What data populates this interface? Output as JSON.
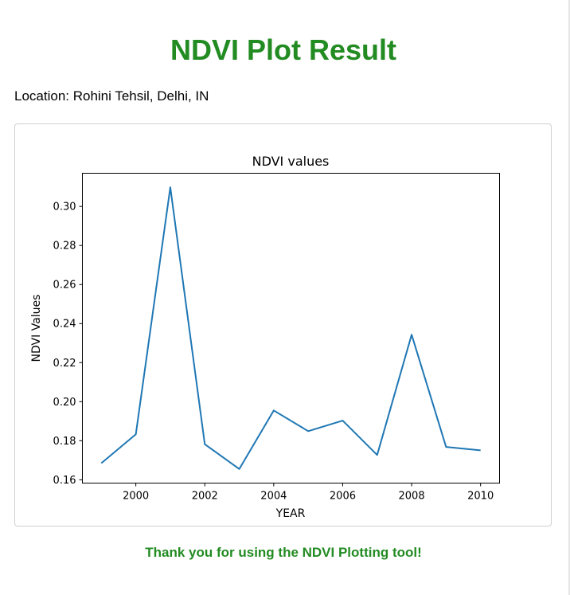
{
  "page": {
    "title": "NDVI Plot Result",
    "location_label": "Location: Rohini Tehsil, Delhi, IN",
    "footer": "Thank you for using the NDVI Plotting tool!",
    "accent_color": "#228b22"
  },
  "chart_data": {
    "type": "line",
    "title": "NDVI values",
    "xlabel": "YEAR",
    "ylabel": "NDVI Values",
    "x": [
      1999,
      2000,
      2001,
      2002,
      2003,
      2004,
      2005,
      2006,
      2007,
      2008,
      2009,
      2010
    ],
    "series": [
      {
        "values": [
          0.1685,
          0.1833,
          0.3098,
          0.1782,
          0.1655,
          0.1955,
          0.1849,
          0.1903,
          0.1727,
          0.2343,
          0.1768,
          0.1751
        ],
        "color": "#1f77b4"
      }
    ],
    "xlim": [
      1998.45,
      2010.55
    ],
    "ylim": [
      0.1583,
      0.317
    ],
    "xticks": [
      2000,
      2002,
      2004,
      2006,
      2008,
      2010
    ],
    "yticks": [
      0.16,
      0.18,
      0.2,
      0.22,
      0.24,
      0.26,
      0.28,
      0.3
    ],
    "ytick_labels": [
      "0.16",
      "0.18",
      "0.20",
      "0.22",
      "0.24",
      "0.26",
      "0.28",
      "0.30"
    ],
    "grid": false
  }
}
